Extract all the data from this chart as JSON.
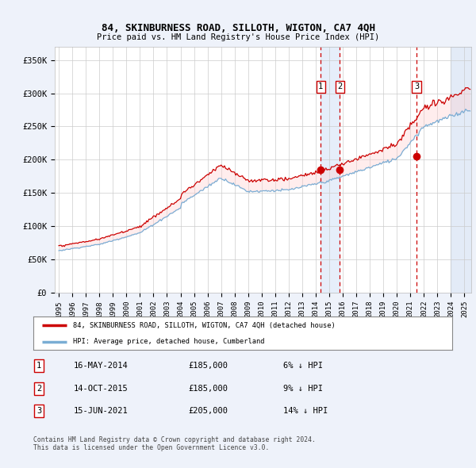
{
  "title": "84, SKINBURNESS ROAD, SILLOTH, WIGTON, CA7 4QH",
  "subtitle": "Price paid vs. HM Land Registry's House Price Index (HPI)",
  "ylabel_ticks": [
    "£0",
    "£50K",
    "£100K",
    "£150K",
    "£200K",
    "£250K",
    "£300K",
    "£350K"
  ],
  "ytick_values": [
    0,
    50000,
    100000,
    150000,
    200000,
    250000,
    300000,
    350000
  ],
  "ylim": [
    0,
    370000
  ],
  "xlim_start": 1994.7,
  "xlim_end": 2025.5,
  "sale_dates": [
    2014.37,
    2015.79,
    2021.46
  ],
  "sale_prices": [
    185000,
    185000,
    205000
  ],
  "sale_labels": [
    "1",
    "2",
    "3"
  ],
  "legend_label_red": "84, SKINBURNESS ROAD, SILLOTH, WIGTON, CA7 4QH (detached house)",
  "legend_label_blue": "HPI: Average price, detached house, Cumberland",
  "table_data": [
    [
      "1",
      "16-MAY-2014",
      "£185,000",
      "6% ↓ HPI"
    ],
    [
      "2",
      "14-OCT-2015",
      "£185,000",
      "9% ↓ HPI"
    ],
    [
      "3",
      "15-JUN-2021",
      "£205,000",
      "14% ↓ HPI"
    ]
  ],
  "footer": "Contains HM Land Registry data © Crown copyright and database right 2024.\nThis data is licensed under the Open Government Licence v3.0.",
  "bg_color": "#eef2fa",
  "plot_bg_color": "#ffffff",
  "red_line_color": "#cc0000",
  "blue_line_color": "#7aadd4",
  "blue_fill_color": "#c8d8f0",
  "vline_color": "#cc0000",
  "shade_between_sales_color": "#dce8f8",
  "hpi_base_1995": 63000,
  "red_base_1995": 60000,
  "hpi_at_sale1": 197000,
  "red_at_sale1": 185000
}
